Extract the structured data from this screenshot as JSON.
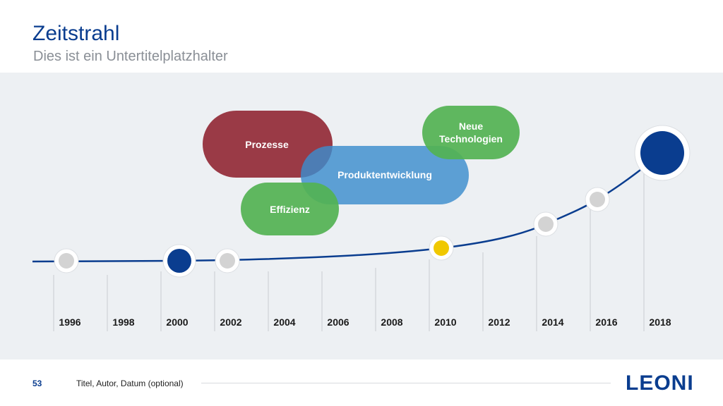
{
  "header": {
    "title": "Zeitstrahl",
    "subtitle": "Dies ist ein Untertitelplatzhalter"
  },
  "bubbles": {
    "prozesse": "Prozesse",
    "produktentwicklung": "Produktentwicklung",
    "effizienz": "Effizienz",
    "neue_technologien": "Neue Technologien"
  },
  "years": [
    "1996",
    "1998",
    "2000",
    "2002",
    "2004",
    "2006",
    "2008",
    "2010",
    "2012",
    "2014",
    "2016",
    "2018"
  ],
  "colors": {
    "brand_blue": "#0a3d8f",
    "highlight_yellow": "#f0c800",
    "marker_gray": "#d3d3d3",
    "prozesse": "#932a37",
    "produktentwicklung": "#3c8ccd",
    "green": "#52b252"
  },
  "footer": {
    "page_number": "53",
    "text": "Titel, Autor, Datum (optional)",
    "logo": "LEONI"
  }
}
